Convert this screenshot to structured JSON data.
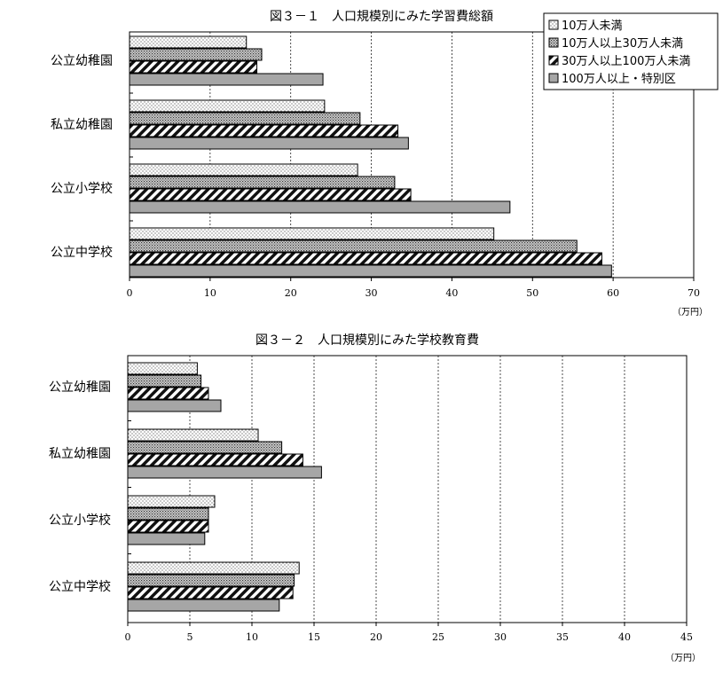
{
  "series_names": [
    "10万人未満",
    "10万人以上30万人未満",
    "30万人以上100万人未満",
    "100万人以上・特別区"
  ],
  "chart_data": [
    {
      "type": "bar",
      "orientation": "horizontal",
      "title": "図３－１　人口規模別にみた学習費総額",
      "unit": "（万円）",
      "categories": [
        "公立幼稚園",
        "私立幼稚園",
        "公立小学校",
        "公立中学校"
      ],
      "xlim": [
        0,
        70
      ],
      "ticks": [
        0,
        10,
        20,
        30,
        40,
        50,
        60,
        70
      ],
      "grid": "dashed-vertical",
      "legend": "top-right",
      "series": [
        {
          "name": "10万人未満",
          "values": [
            14.5,
            24.2,
            28.3,
            45.2
          ]
        },
        {
          "name": "10万人以上30万人未満",
          "values": [
            16.4,
            28.6,
            32.9,
            55.5
          ]
        },
        {
          "name": "30万人以上100万人未満",
          "values": [
            15.8,
            33.3,
            34.9,
            58.6
          ]
        },
        {
          "name": "100万人以上・特別区",
          "values": [
            24.0,
            34.6,
            47.2,
            59.8
          ]
        }
      ]
    },
    {
      "type": "bar",
      "orientation": "horizontal",
      "title": "図３－２　人口規模別にみた学校教育費",
      "unit": "（万円）",
      "categories": [
        "公立幼稚園",
        "私立幼稚園",
        "公立小学校",
        "公立中学校"
      ],
      "xlim": [
        0,
        45
      ],
      "ticks": [
        0,
        5,
        10,
        15,
        20,
        25,
        30,
        35,
        40,
        45
      ],
      "grid": "dashed-vertical",
      "legend": "none",
      "series": [
        {
          "name": "10万人未満",
          "values": [
            5.6,
            10.5,
            7.0,
            13.8
          ]
        },
        {
          "name": "10万人以上30万人未満",
          "values": [
            5.9,
            12.4,
            6.5,
            13.4
          ]
        },
        {
          "name": "30万人以上100万人未満",
          "values": [
            6.5,
            14.1,
            6.5,
            13.3
          ]
        },
        {
          "name": "100万人以上・特別区",
          "values": [
            7.5,
            15.6,
            6.2,
            12.2
          ]
        }
      ]
    }
  ]
}
